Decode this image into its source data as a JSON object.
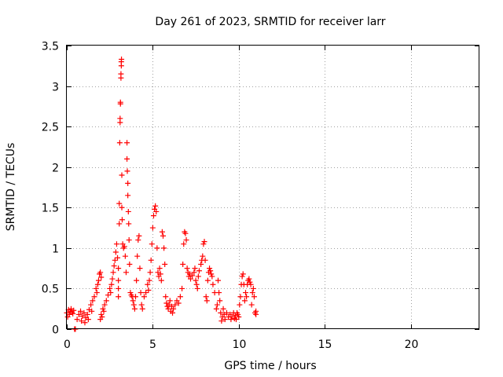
{
  "chart_data": {
    "type": "scatter",
    "title": "Day 261 of 2023, SRMTID for receiver larr",
    "xlabel": "GPS time / hours",
    "ylabel": "SRMTID / TECUs",
    "xlim": [
      0,
      24
    ],
    "ylim": [
      0,
      3.5
    ],
    "xticks": [
      0,
      5,
      10,
      15,
      20
    ],
    "yticks": [
      0,
      0.5,
      1,
      1.5,
      2,
      2.5,
      3,
      3.5
    ],
    "xtick_labels": [
      "0",
      "5",
      "10",
      "15",
      "20"
    ],
    "ytick_labels": [
      "0",
      "0.5",
      "1",
      "1.5",
      "2",
      "2.5",
      "3",
      "3.5"
    ],
    "grid": true,
    "marker": "+",
    "color": "#ff0000",
    "series": [
      {
        "name": "SRMTID",
        "points": [
          [
            0.0,
            0.2
          ],
          [
            0.05,
            0.15
          ],
          [
            0.1,
            0.24
          ],
          [
            0.15,
            0.18
          ],
          [
            0.2,
            0.22
          ],
          [
            0.25,
            0.25
          ],
          [
            0.3,
            0.21
          ],
          [
            0.35,
            0.19
          ],
          [
            0.4,
            0.23
          ],
          [
            0.45,
            0.0
          ],
          [
            0.5,
            0.0
          ],
          [
            0.6,
            0.12
          ],
          [
            0.7,
            0.18
          ],
          [
            0.8,
            0.22
          ],
          [
            0.85,
            0.1
          ],
          [
            0.9,
            0.16
          ],
          [
            1.0,
            0.2
          ],
          [
            1.05,
            0.08
          ],
          [
            1.1,
            0.14
          ],
          [
            1.2,
            0.18
          ],
          [
            1.25,
            0.12
          ],
          [
            1.3,
            0.24
          ],
          [
            1.4,
            0.3
          ],
          [
            1.45,
            0.22
          ],
          [
            1.5,
            0.35
          ],
          [
            1.6,
            0.4
          ],
          [
            1.7,
            0.5
          ],
          [
            1.75,
            0.45
          ],
          [
            1.8,
            0.55
          ],
          [
            1.85,
            0.6
          ],
          [
            1.9,
            0.68
          ],
          [
            1.95,
            0.7
          ],
          [
            2.0,
            0.64
          ],
          [
            1.95,
            0.12
          ],
          [
            2.0,
            0.18
          ],
          [
            2.05,
            0.15
          ],
          [
            2.1,
            0.25
          ],
          [
            2.15,
            0.22
          ],
          [
            2.2,
            0.3
          ],
          [
            2.3,
            0.35
          ],
          [
            2.4,
            0.42
          ],
          [
            2.5,
            0.5
          ],
          [
            2.55,
            0.45
          ],
          [
            2.6,
            0.55
          ],
          [
            2.65,
            0.62
          ],
          [
            2.7,
            0.7
          ],
          [
            2.75,
            0.78
          ],
          [
            2.8,
            0.85
          ],
          [
            2.85,
            0.95
          ],
          [
            2.9,
            1.05
          ],
          [
            2.95,
            0.88
          ],
          [
            3.0,
            0.75
          ],
          [
            3.0,
            0.6
          ],
          [
            3.0,
            0.5
          ],
          [
            3.0,
            0.4
          ],
          [
            3.05,
            1.3
          ],
          [
            3.05,
            1.55
          ],
          [
            3.08,
            2.3
          ],
          [
            3.1,
            2.55
          ],
          [
            3.1,
            2.6
          ],
          [
            3.12,
            2.78
          ],
          [
            3.12,
            2.8
          ],
          [
            3.15,
            3.1
          ],
          [
            3.15,
            3.15
          ],
          [
            3.17,
            3.25
          ],
          [
            3.17,
            3.3
          ],
          [
            3.18,
            3.33
          ],
          [
            3.2,
            1.9
          ],
          [
            3.2,
            1.5
          ],
          [
            3.22,
            1.35
          ],
          [
            3.25,
            1.05
          ],
          [
            3.3,
            1.0
          ],
          [
            3.35,
            1.02
          ],
          [
            3.4,
            0.9
          ],
          [
            3.45,
            0.7
          ],
          [
            3.5,
            2.3
          ],
          [
            3.5,
            2.1
          ],
          [
            3.52,
            1.95
          ],
          [
            3.55,
            1.8
          ],
          [
            3.55,
            1.65
          ],
          [
            3.58,
            1.45
          ],
          [
            3.6,
            1.3
          ],
          [
            3.62,
            1.1
          ],
          [
            3.65,
            0.8
          ],
          [
            3.7,
            0.45
          ],
          [
            3.75,
            0.42
          ],
          [
            3.8,
            0.4
          ],
          [
            3.85,
            0.35
          ],
          [
            3.9,
            0.3
          ],
          [
            3.95,
            0.25
          ],
          [
            4.0,
            0.4
          ],
          [
            4.05,
            0.6
          ],
          [
            4.1,
            0.9
          ],
          [
            4.15,
            1.1
          ],
          [
            4.2,
            1.15
          ],
          [
            4.25,
            0.75
          ],
          [
            4.3,
            0.45
          ],
          [
            4.35,
            0.3
          ],
          [
            4.4,
            0.25
          ],
          [
            4.5,
            0.4
          ],
          [
            4.6,
            0.45
          ],
          [
            4.7,
            0.55
          ],
          [
            4.75,
            0.48
          ],
          [
            4.8,
            0.6
          ],
          [
            4.85,
            0.7
          ],
          [
            4.9,
            0.85
          ],
          [
            4.95,
            1.05
          ],
          [
            5.0,
            1.25
          ],
          [
            5.05,
            1.4
          ],
          [
            5.1,
            1.48
          ],
          [
            5.15,
            1.52
          ],
          [
            5.2,
            1.45
          ],
          [
            5.25,
            1.0
          ],
          [
            5.3,
            0.7
          ],
          [
            5.35,
            0.65
          ],
          [
            5.4,
            0.75
          ],
          [
            5.45,
            0.68
          ],
          [
            5.5,
            0.6
          ],
          [
            5.55,
            1.2
          ],
          [
            5.6,
            1.15
          ],
          [
            5.65,
            1.0
          ],
          [
            5.7,
            0.8
          ],
          [
            5.75,
            0.4
          ],
          [
            5.8,
            0.32
          ],
          [
            5.85,
            0.28
          ],
          [
            5.9,
            0.25
          ],
          [
            5.95,
            0.3
          ],
          [
            6.0,
            0.35
          ],
          [
            6.05,
            0.22
          ],
          [
            6.1,
            0.28
          ],
          [
            6.15,
            0.2
          ],
          [
            6.2,
            0.25
          ],
          [
            6.3,
            0.3
          ],
          [
            6.4,
            0.35
          ],
          [
            6.5,
            0.32
          ],
          [
            6.6,
            0.4
          ],
          [
            6.7,
            0.5
          ],
          [
            6.75,
            0.8
          ],
          [
            6.8,
            1.05
          ],
          [
            6.85,
            1.2
          ],
          [
            6.9,
            1.18
          ],
          [
            6.95,
            1.1
          ],
          [
            7.0,
            0.75
          ],
          [
            7.05,
            0.7
          ],
          [
            7.1,
            0.65
          ],
          [
            7.15,
            0.68
          ],
          [
            7.2,
            0.62
          ],
          [
            7.3,
            0.66
          ],
          [
            7.4,
            0.7
          ],
          [
            7.45,
            0.75
          ],
          [
            7.5,
            0.6
          ],
          [
            7.55,
            0.55
          ],
          [
            7.6,
            0.5
          ],
          [
            7.65,
            0.65
          ],
          [
            7.7,
            0.72
          ],
          [
            7.8,
            0.8
          ],
          [
            7.85,
            0.85
          ],
          [
            7.9,
            0.9
          ],
          [
            7.95,
            1.05
          ],
          [
            8.0,
            1.08
          ],
          [
            8.05,
            0.85
          ],
          [
            8.1,
            0.4
          ],
          [
            8.15,
            0.35
          ],
          [
            8.2,
            0.6
          ],
          [
            8.25,
            0.7
          ],
          [
            8.3,
            0.75
          ],
          [
            8.35,
            0.72
          ],
          [
            8.4,
            0.68
          ],
          [
            8.45,
            0.65
          ],
          [
            8.5,
            0.55
          ],
          [
            8.6,
            0.45
          ],
          [
            8.7,
            0.25
          ],
          [
            8.75,
            0.3
          ],
          [
            8.8,
            0.6
          ],
          [
            8.85,
            0.45
          ],
          [
            8.9,
            0.35
          ],
          [
            8.95,
            0.2
          ],
          [
            9.0,
            0.1
          ],
          [
            9.05,
            0.15
          ],
          [
            9.1,
            0.25
          ],
          [
            9.15,
            0.18
          ],
          [
            9.2,
            0.12
          ],
          [
            9.3,
            0.2
          ],
          [
            9.4,
            0.15
          ],
          [
            9.5,
            0.18
          ],
          [
            9.55,
            0.12
          ],
          [
            9.6,
            0.15
          ],
          [
            9.7,
            0.2
          ],
          [
            9.75,
            0.13
          ],
          [
            9.8,
            0.17
          ],
          [
            9.85,
            0.12
          ],
          [
            9.9,
            0.2
          ],
          [
            9.95,
            0.18
          ],
          [
            10.0,
            0.15
          ],
          [
            10.05,
            0.3
          ],
          [
            10.1,
            0.4
          ],
          [
            10.15,
            0.55
          ],
          [
            10.2,
            0.65
          ],
          [
            10.25,
            0.68
          ],
          [
            10.3,
            0.55
          ],
          [
            10.35,
            0.35
          ],
          [
            10.4,
            0.45
          ],
          [
            10.45,
            0.4
          ],
          [
            10.5,
            0.55
          ],
          [
            10.55,
            0.6
          ],
          [
            10.6,
            0.62
          ],
          [
            10.65,
            0.58
          ],
          [
            10.7,
            0.55
          ],
          [
            10.75,
            0.3
          ],
          [
            10.8,
            0.45
          ],
          [
            10.85,
            0.5
          ],
          [
            10.9,
            0.4
          ],
          [
            10.95,
            0.2
          ],
          [
            11.0,
            0.18
          ],
          [
            11.0,
            0.22
          ]
        ]
      }
    ]
  }
}
